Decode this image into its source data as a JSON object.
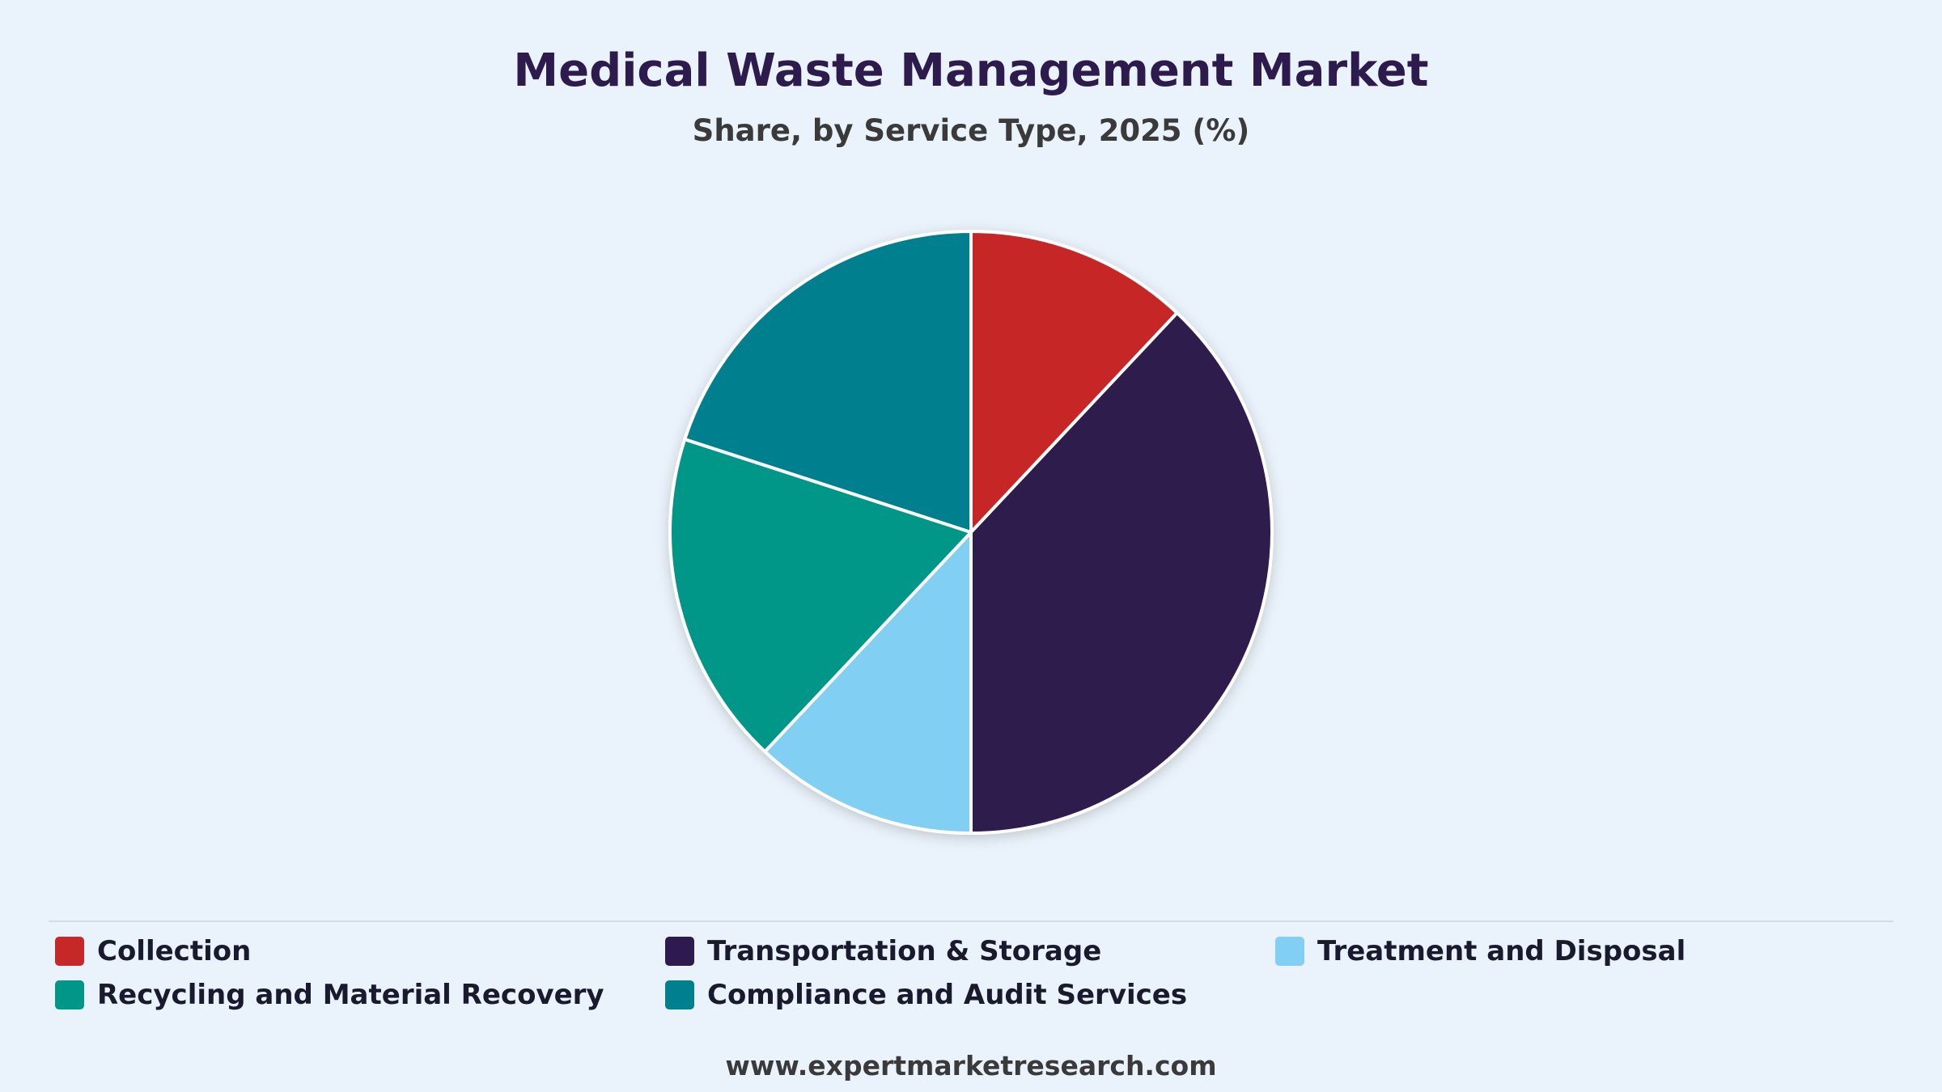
{
  "chart_data": {
    "type": "pie",
    "title": "Medical Waste Management Market",
    "subtitle": "Share, by Service Type, 2025 (%)",
    "series": [
      {
        "name": "Collection",
        "value": 12.0,
        "color": "#c62828"
      },
      {
        "name": "Transportation & Storage",
        "value": 38.0,
        "color": "#2e1a4d"
      },
      {
        "name": "Treatment and Disposal",
        "value": 12.0,
        "color": "#81cff2"
      },
      {
        "name": "Recycling and Material Recovery",
        "value": 18.0,
        "color": "#009688"
      },
      {
        "name": "Compliance and Audit Services",
        "value": 20.0,
        "color": "#007f8e"
      }
    ],
    "start_angle_deg": 0,
    "direction": "clockwise",
    "legend_position": "bottom"
  },
  "footer": {
    "source": "www.expertmarketresearch.com"
  }
}
